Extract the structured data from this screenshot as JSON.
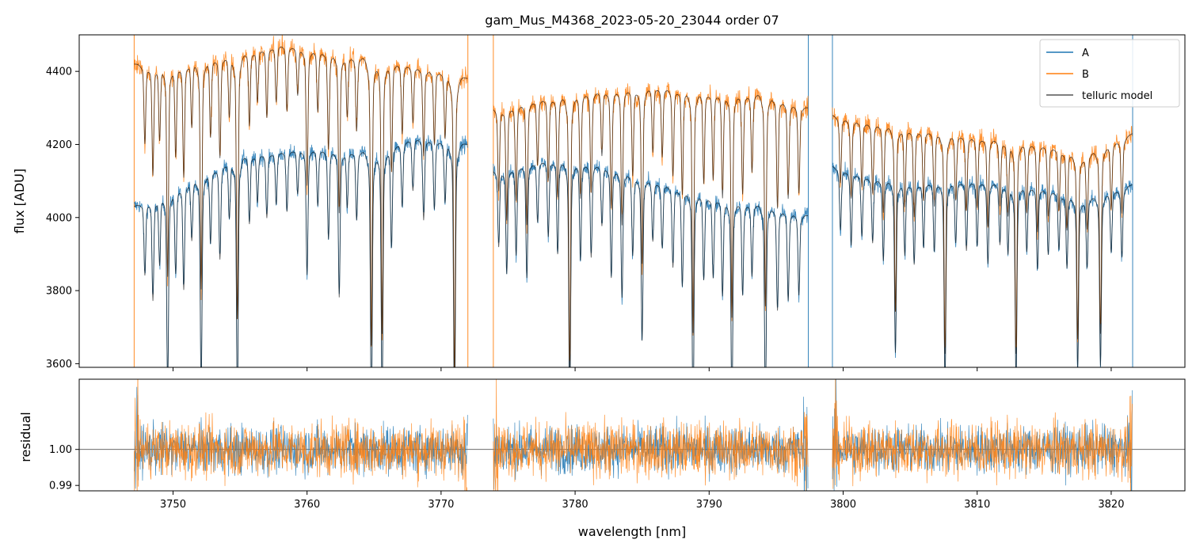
{
  "chart_data": [
    {
      "type": "line",
      "title": "gam_Mus_M4368_2023-05-20_23044  order 07",
      "xlabel": "",
      "ylabel": "flux [ADU]",
      "xlim": [
        3743.0,
        3825.5
      ],
      "ylim": [
        3590,
        4500
      ],
      "yticks": [
        3600,
        3800,
        4000,
        4200,
        4400
      ],
      "xticks": [
        3750,
        3760,
        3770,
        3780,
        3790,
        3800,
        3810,
        3820
      ],
      "grid": false,
      "legend": "top-right",
      "segments": [
        [
          3747.1,
          3772.0
        ],
        [
          3773.9,
          3797.4
        ],
        [
          3799.2,
          3821.6
        ]
      ],
      "spike_lines": [
        {
          "x": 3747.1,
          "series": "B"
        },
        {
          "x": 3772.0,
          "series": "B"
        },
        {
          "x": 3773.9,
          "series": "B"
        },
        {
          "x": 3797.4,
          "series": "A"
        },
        {
          "x": 3799.2,
          "series": "A"
        },
        {
          "x": 3821.6,
          "series": "A"
        }
      ],
      "series": [
        {
          "name": "A",
          "color": "#1f77b4",
          "continuum": [
            [
              3747.1,
              4030
            ],
            [
              3750,
              4080
            ],
            [
              3755,
              4170
            ],
            [
              3760,
              4190
            ],
            [
              3765,
              4180
            ],
            [
              3768,
              4220
            ],
            [
              3772.0,
              4200
            ],
            [
              3773.9,
              4130
            ],
            [
              3778,
              4160
            ],
            [
              3782,
              4145
            ],
            [
              3786,
              4100
            ],
            [
              3790,
              4060
            ],
            [
              3794,
              4035
            ],
            [
              3797.4,
              4005
            ],
            [
              3799.2,
              4140
            ],
            [
              3802,
              4110
            ],
            [
              3805,
              4095
            ],
            [
              3810,
              4100
            ],
            [
              3815,
              4080
            ],
            [
              3818,
              4050
            ],
            [
              3821.6,
              4090
            ]
          ]
        },
        {
          "name": "B",
          "color": "#ff7f0e",
          "continuum": [
            [
              3747.1,
              4420
            ],
            [
              3750,
              4420
            ],
            [
              3755,
              4450
            ],
            [
              3758,
              4475
            ],
            [
              3762,
              4450
            ],
            [
              3766,
              4430
            ],
            [
              3770,
              4400
            ],
            [
              3772.0,
              4380
            ],
            [
              3773.9,
              4300
            ],
            [
              3778,
              4330
            ],
            [
              3782,
              4350
            ],
            [
              3786,
              4360
            ],
            [
              3790,
              4345
            ],
            [
              3794,
              4340
            ],
            [
              3797.4,
              4300
            ],
            [
              3799.2,
              4280
            ],
            [
              3802,
              4260
            ],
            [
              3805,
              4245
            ],
            [
              3810,
              4220
            ],
            [
              3815,
              4200
            ],
            [
              3818,
              4170
            ],
            [
              3821.6,
              4230
            ]
          ]
        },
        {
          "name": "telluric model",
          "color": "#555555"
        }
      ],
      "absorption_lines": [
        [
          3747.9,
          180
        ],
        [
          3748.5,
          250
        ],
        [
          3749.0,
          170
        ],
        [
          3749.6,
          480
        ],
        [
          3750.2,
          210
        ],
        [
          3750.8,
          260
        ],
        [
          3751.4,
          150
        ],
        [
          3752.1,
          520
        ],
        [
          3752.8,
          180
        ],
        [
          3753.5,
          230
        ],
        [
          3754.2,
          140
        ],
        [
          3754.8,
          600
        ],
        [
          3755.7,
          170
        ],
        [
          3756.3,
          120
        ],
        [
          3757.0,
          160
        ],
        [
          3757.7,
          130
        ],
        [
          3758.5,
          150
        ],
        [
          3759.3,
          110
        ],
        [
          3760.0,
          310
        ],
        [
          3760.8,
          140
        ],
        [
          3761.6,
          220
        ],
        [
          3762.4,
          360
        ],
        [
          3763.0,
          140
        ],
        [
          3763.7,
          170
        ],
        [
          3764.8,
          650
        ],
        [
          3765.6,
          620
        ],
        [
          3766.3,
          250
        ],
        [
          3767.1,
          160
        ],
        [
          3767.9,
          130
        ],
        [
          3768.7,
          200
        ],
        [
          3769.5,
          170
        ],
        [
          3770.3,
          150
        ],
        [
          3771.0,
          680
        ],
        [
          3774.3,
          190
        ],
        [
          3774.9,
          260
        ],
        [
          3775.6,
          220
        ],
        [
          3776.4,
          280
        ],
        [
          3777.2,
          150
        ],
        [
          3778.0,
          190
        ],
        [
          3778.7,
          230
        ],
        [
          3779.6,
          620
        ],
        [
          3780.4,
          240
        ],
        [
          3781.2,
          230
        ],
        [
          3782.0,
          150
        ],
        [
          3782.7,
          270
        ],
        [
          3783.5,
          310
        ],
        [
          3784.3,
          200
        ],
        [
          3785.0,
          400
        ],
        [
          3785.8,
          150
        ],
        [
          3786.5,
          160
        ],
        [
          3787.3,
          200
        ],
        [
          3788.0,
          240
        ],
        [
          3788.8,
          550
        ],
        [
          3789.6,
          210
        ],
        [
          3790.3,
          200
        ],
        [
          3791.0,
          240
        ],
        [
          3791.7,
          510
        ],
        [
          3792.5,
          230
        ],
        [
          3793.2,
          180
        ],
        [
          3794.2,
          480
        ],
        [
          3795.1,
          250
        ],
        [
          3795.9,
          220
        ],
        [
          3796.7,
          200
        ],
        [
          3799.8,
          150
        ],
        [
          3800.6,
          180
        ],
        [
          3801.4,
          150
        ],
        [
          3802.2,
          160
        ],
        [
          3803.0,
          200
        ],
        [
          3803.9,
          420
        ],
        [
          3804.6,
          180
        ],
        [
          3805.3,
          200
        ],
        [
          3806.0,
          160
        ],
        [
          3806.8,
          170
        ],
        [
          3807.6,
          500
        ],
        [
          3808.4,
          150
        ],
        [
          3809.2,
          170
        ],
        [
          3810.0,
          160
        ],
        [
          3810.8,
          200
        ],
        [
          3811.7,
          150
        ],
        [
          3812.3,
          170
        ],
        [
          3812.9,
          480
        ],
        [
          3813.7,
          160
        ],
        [
          3814.5,
          200
        ],
        [
          3815.3,
          160
        ],
        [
          3816.1,
          140
        ],
        [
          3816.7,
          180
        ],
        [
          3817.5,
          420
        ],
        [
          3818.2,
          170
        ],
        [
          3819.2,
          420
        ],
        [
          3820.0,
          150
        ],
        [
          3820.8,
          170
        ]
      ]
    },
    {
      "type": "line",
      "title": "",
      "xlabel": "wavelength [nm]",
      "ylabel": "residual",
      "xlim": [
        3743.0,
        3825.5
      ],
      "ylim": [
        0.9885,
        1.0195
      ],
      "yticks": [
        0.99,
        1.0
      ],
      "ytick_labels": [
        "0.99",
        "1.00"
      ],
      "xticks": [
        3750,
        3760,
        3770,
        3780,
        3790,
        3800,
        3810,
        3820
      ],
      "xtick_labels": [
        "3750",
        "3760",
        "3770",
        "3780",
        "3790",
        "3800",
        "3810",
        "3820"
      ],
      "reference_line": 1.0,
      "noise_scatter": 0.006,
      "series": [
        {
          "name": "A",
          "color": "#1f77b4"
        },
        {
          "name": "B",
          "color": "#ff7f0e"
        }
      ]
    }
  ]
}
